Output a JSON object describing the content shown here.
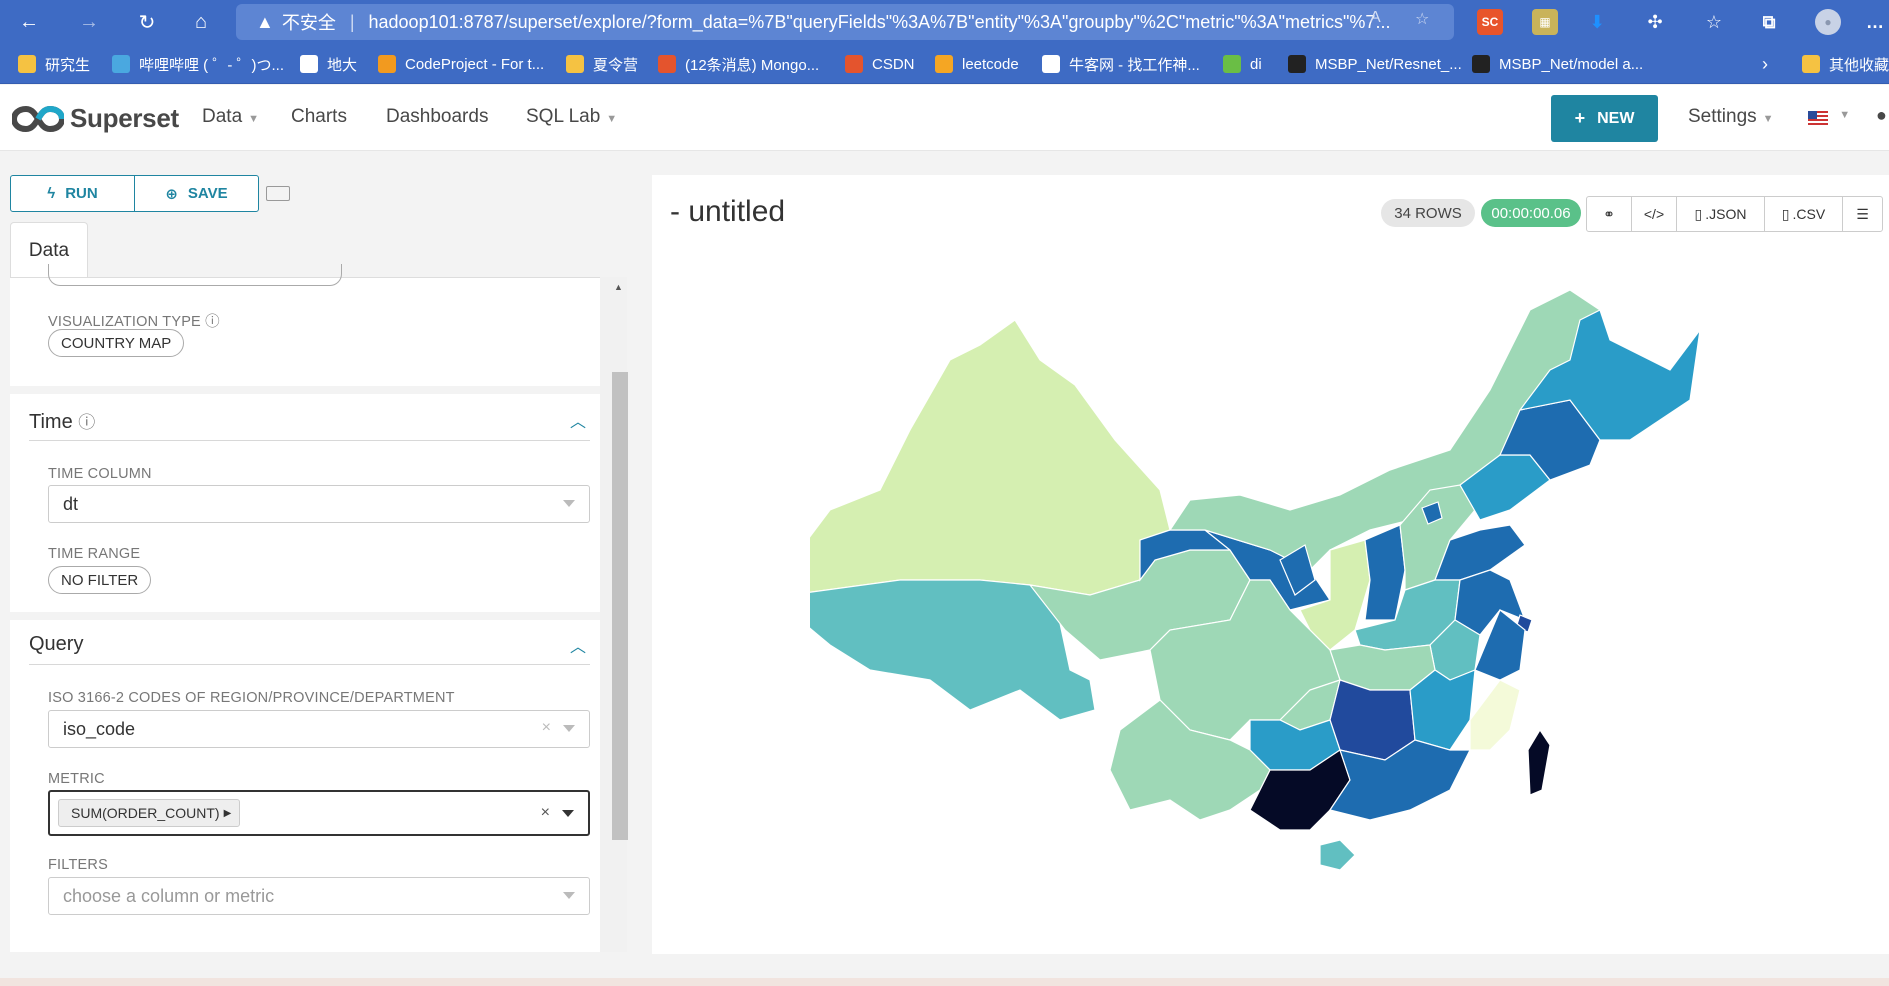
{
  "browser": {
    "security_label": "不安全",
    "url": "hadoop101:8787/superset/explore/?form_data=%7B\"queryFields\"%3A%7B\"entity\"%3A\"groupby\"%2C\"metric\"%3A\"metrics\"%7...",
    "extension_sc": "SC",
    "bookmarks": [
      {
        "label": "研究生",
        "icon": "folder-icon",
        "color": "#f5c242"
      },
      {
        "label": "哔哩哔哩 ( ゜- ゜)つ...",
        "icon": "bilibili-icon",
        "color": "#4aa8e0"
      },
      {
        "label": "地大",
        "icon": "page-icon",
        "color": "#ffffff"
      },
      {
        "label": "CodeProject - For t...",
        "icon": "codeproject-icon",
        "color": "#f29a1f"
      },
      {
        "label": "夏令营",
        "icon": "folder-icon",
        "color": "#f5c242"
      },
      {
        "label": "(12条消息) Mongo...",
        "icon": "csdn-icon",
        "color": "#e4542d"
      },
      {
        "label": "CSDN",
        "icon": "csdn-icon",
        "color": "#e4542d"
      },
      {
        "label": "leetcode",
        "icon": "leetcode-icon",
        "color": "#f5a623"
      },
      {
        "label": "牛客网 - 找工作神...",
        "icon": "nowcoder-icon",
        "color": "#ffffff"
      },
      {
        "label": "di",
        "icon": "leaf-icon",
        "color": "#6abe45"
      },
      {
        "label": "MSBP_Net/Resnet_...",
        "icon": "github-icon",
        "color": "#222222"
      },
      {
        "label": "MSBP_Net/model a...",
        "icon": "github-icon",
        "color": "#222222"
      }
    ],
    "other_bookmarks": "其他收藏"
  },
  "navbar": {
    "brand": "Superset",
    "menu": [
      {
        "label": "Data",
        "dropdown": true
      },
      {
        "label": "Charts",
        "dropdown": false
      },
      {
        "label": "Dashboards",
        "dropdown": false
      },
      {
        "label": "SQL Lab",
        "dropdown": true
      }
    ],
    "new_button": "NEW",
    "settings": "Settings"
  },
  "controls": {
    "run_label": "RUN",
    "save_label": "SAVE",
    "data_tab": "Data",
    "visualization_type_label": "VISUALIZATION TYPE",
    "visualization_type_value": "COUNTRY MAP",
    "time_section": {
      "title": "Time",
      "time_column_label": "TIME COLUMN",
      "time_column_value": "dt",
      "time_range_label": "TIME RANGE",
      "time_range_value": "NO FILTER"
    },
    "query_section": {
      "title": "Query",
      "iso_label": "ISO 3166-2 CODES OF REGION/PROVINCE/DEPARTMENT",
      "iso_value": "iso_code",
      "metric_label": "METRIC",
      "metric_value": "SUM(ORDER_COUNT)",
      "filters_label": "FILTERS",
      "filters_placeholder": "choose a column or metric"
    }
  },
  "chart": {
    "title": "- untitled",
    "rows_badge": "34 ROWS",
    "timer": "00:00:00.06",
    "actions": [
      {
        "name": "link-icon",
        "label": "",
        "glyph": "🔗"
      },
      {
        "name": "embed-code-icon",
        "label": "",
        "glyph": "</>"
      },
      {
        "name": "json-export",
        "label": ".JSON",
        "glyph": "🗎"
      },
      {
        "name": "csv-export",
        "label": ".CSV",
        "glyph": "🗎"
      },
      {
        "name": "menu-icon",
        "label": "",
        "glyph": "☰"
      }
    ],
    "colors": {
      "lightest": "#f4fad9",
      "light": "#d5efb1",
      "mid_light": "#9ed8b6",
      "mid": "#61bfc1",
      "mid_dark": "#2a9cc8",
      "dark": "#1e6cb0",
      "darker": "#214a9d",
      "darkest": "#050a26"
    }
  },
  "chart_data": {
    "type": "heatmap",
    "map": "country map (China provinces)",
    "metric": "SUM(ORDER_COUNT)",
    "entity": "iso_code",
    "row_count": 34
  }
}
